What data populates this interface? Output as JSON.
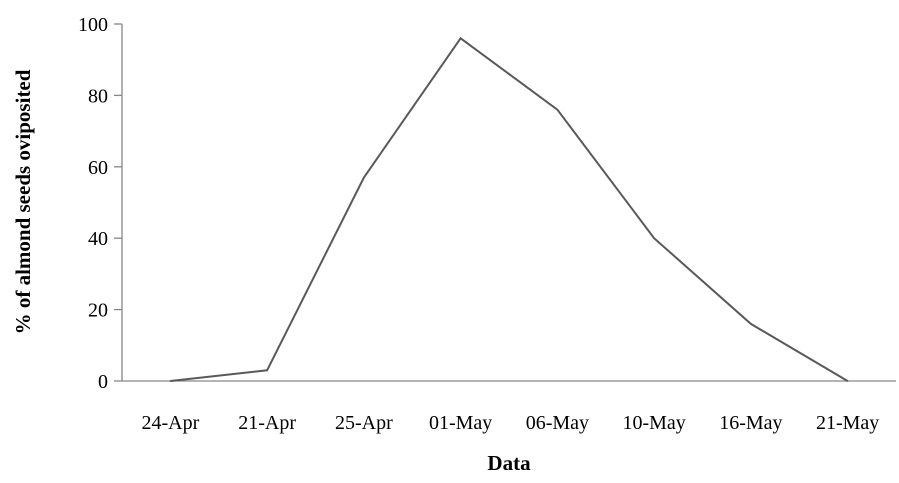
{
  "chart_data": {
    "type": "line",
    "title": "",
    "xlabel": "Data",
    "ylabel": "% of almond seeds oviposited",
    "categories": [
      "24-Apr",
      "21-Apr",
      "25-Apr",
      "01-May",
      "06-May",
      "10-May",
      "16-May",
      "21-May"
    ],
    "series": [
      {
        "values": [
          0,
          3,
          57,
          96,
          76,
          40,
          16,
          0
        ]
      }
    ],
    "ylim": [
      0,
      100
    ],
    "yticks": [
      0,
      20,
      40,
      60,
      80,
      100
    ],
    "grid": false,
    "legend": "none",
    "line_color": "#595959",
    "axis_color": "#868686"
  }
}
